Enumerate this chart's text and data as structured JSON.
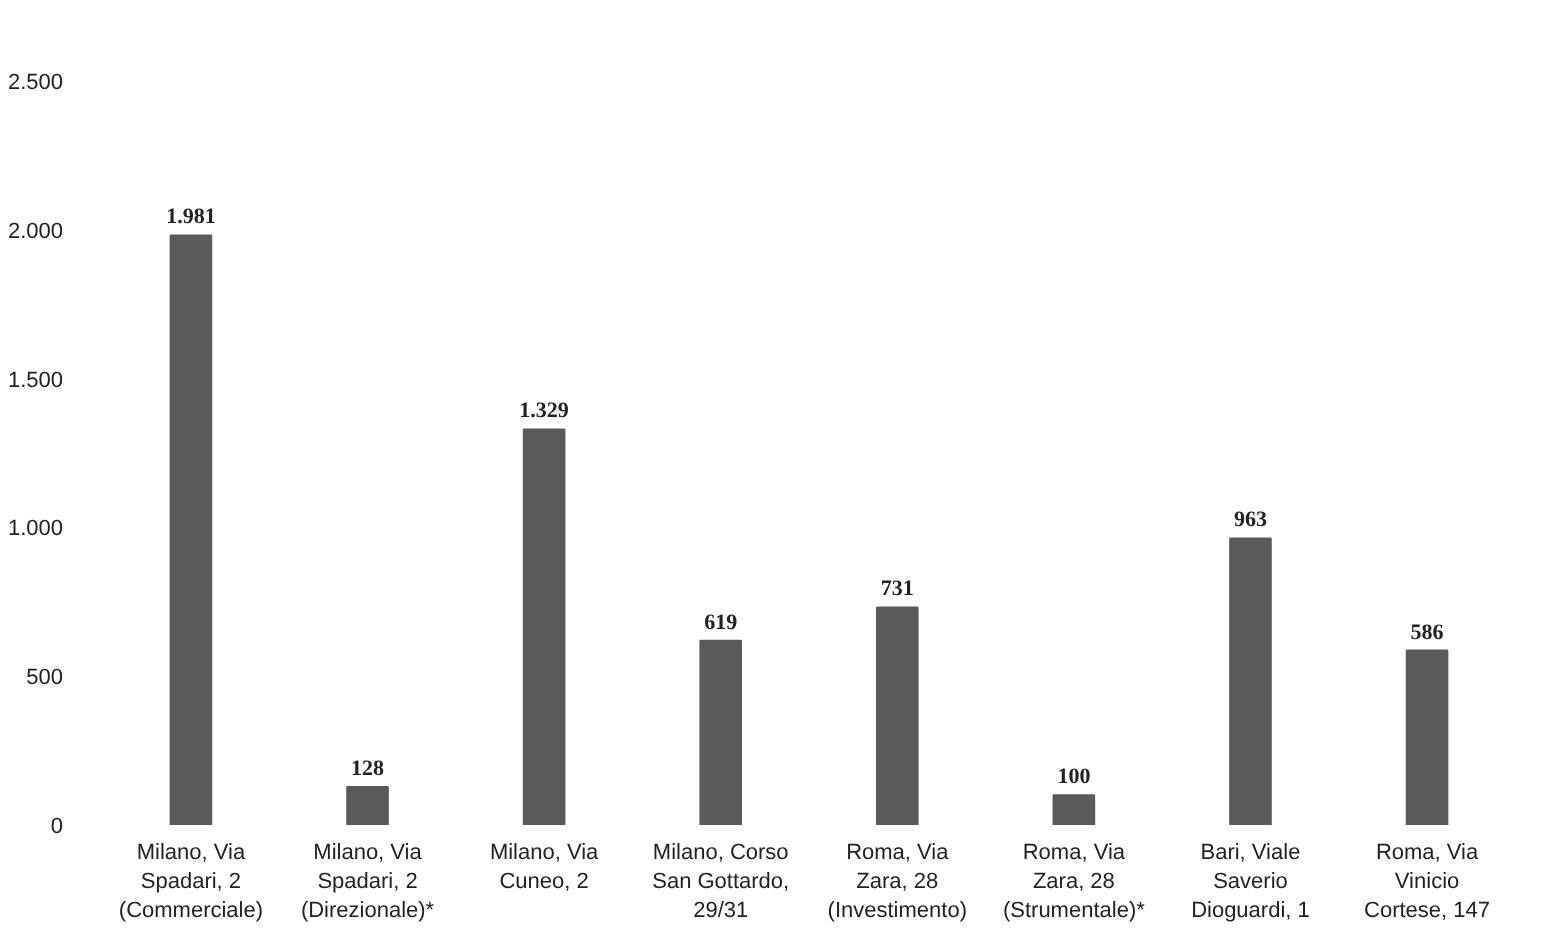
{
  "chart_data": {
    "type": "bar",
    "categories": [
      "Milano, Via Spadari, 2 (Commerciale)",
      "Milano, Via Spadari, 2 (Direzionale)*",
      "Milano, Via Cuneo, 2",
      "Milano, Corso San Gottardo, 29/31",
      "Roma, Via Zara, 28 (Investimento)",
      "Roma, Via Zara, 28 (Strumentale)*",
      "Bari, Viale Saverio Dioguardi, 1",
      "Roma, Via Vinicio Cortese, 147"
    ],
    "values": [
      1981,
      128,
      1329,
      619,
      731,
      100,
      963,
      586
    ],
    "value_labels": [
      "1.981",
      "128",
      "1.329",
      "619",
      "731",
      "100",
      "963",
      "586"
    ],
    "color": "#5a5a5a",
    "ylim": [
      0,
      2500
    ],
    "yticks": [
      {
        "value": 0,
        "label": "0"
      },
      {
        "value": 500,
        "label": "500"
      },
      {
        "value": 1000,
        "label": "1.000"
      },
      {
        "value": 1500,
        "label": "1.500"
      },
      {
        "value": 2000,
        "label": "2.000"
      },
      {
        "value": 2500,
        "label": "2.500"
      }
    ],
    "grid": false
  }
}
